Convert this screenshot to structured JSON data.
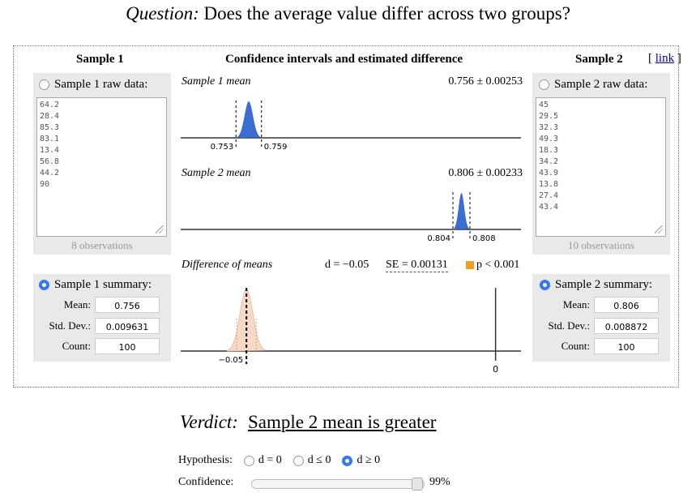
{
  "question": {
    "label": "Question:",
    "text": "Does the average value differ across two groups?"
  },
  "link": {
    "open": "[",
    "text": "link",
    "close": "]"
  },
  "sample1": {
    "title": "Sample 1",
    "raw_label": "Sample 1 raw data:",
    "raw_data": "64.2\n28.4\n85.3\n83.1\n13.4\n56.8\n44.2\n90",
    "observations": "8 observations",
    "summary_label": "Sample 1 summary:",
    "mean_label": "Mean:",
    "mean": "0.756",
    "sd_label": "Std. Dev.:",
    "sd": "0.009631",
    "count_label": "Count:",
    "count": "100"
  },
  "sample2": {
    "title": "Sample 2",
    "raw_label": "Sample 2 raw data:",
    "raw_data": "45\n29.5\n32.3\n49.3\n18.3\n34.2\n43.9\n13.8\n27.4\n43.4",
    "observations": "10 observations",
    "summary_label": "Sample 2 summary:",
    "mean_label": "Mean:",
    "mean": "0.806",
    "sd_label": "Std. Dev.:",
    "sd": "0.008872",
    "count_label": "Count:",
    "count": "100"
  },
  "middle": {
    "title": "Confidence intervals and estimated difference",
    "plot1": {
      "title": "Sample 1 mean",
      "value": "0.756 ± 0.00253",
      "lo_label": "0.753",
      "hi_label": "0.759",
      "mean": 0.756,
      "lo": 0.753,
      "hi": 0.759
    },
    "plot2": {
      "title": "Sample 2 mean",
      "value": "0.806 ± 0.00233",
      "lo_label": "0.804",
      "hi_label": "0.808",
      "mean": 0.806,
      "lo": 0.804,
      "hi": 0.808
    },
    "plot3": {
      "title": "Difference of means",
      "d": "d = −0.05",
      "se": "SE = 0.00131",
      "p": "p < 0.001",
      "d_label": "−0.05",
      "zero_label": "0",
      "d_value": -0.05,
      "se_value": 0.00131
    }
  },
  "colors": {
    "curve_blue": "#3a6fd1",
    "diff_fill": "#f8d9c6",
    "p_square": "#f0a020",
    "radio_on": "#3478f6"
  },
  "verdict": {
    "label": "Verdict:",
    "text": "Sample 2 mean is greater"
  },
  "hypothesis": {
    "label": "Hypothesis:",
    "options": [
      "d = 0",
      "d ≤ 0",
      "d ≥ 0"
    ],
    "selected": 2
  },
  "confidence": {
    "label": "Confidence:",
    "value": "99%",
    "fraction": 0.99
  }
}
